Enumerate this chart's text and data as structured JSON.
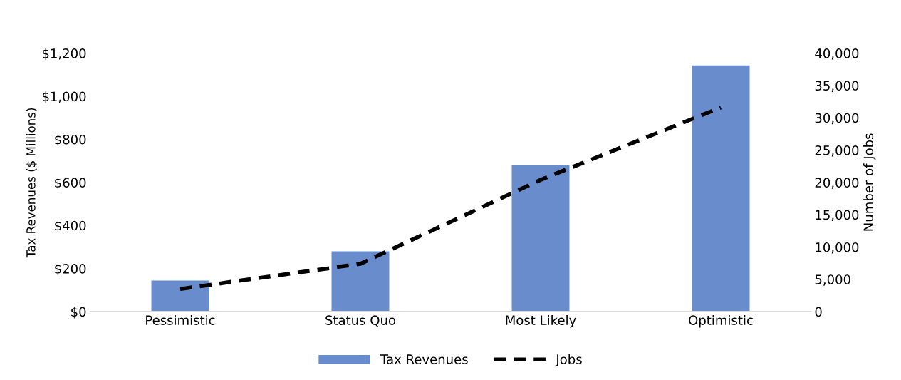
{
  "chart_data": {
    "type": "bar",
    "categories": [
      "Pessimistic",
      "Status Quo",
      "Most Likely",
      "Optimistic"
    ],
    "ylabel": "Tax Revenues ($ Millions)",
    "y2label": "Number of Jobs",
    "series": [
      {
        "name": "Tax Revenues",
        "color": "#698ccc",
        "values": [
          144,
          280,
          679,
          1143
        ]
      },
      {
        "name": "Jobs",
        "type": "line",
        "axis": "y2",
        "color": "#000000",
        "line_style": "dashed",
        "values": [
          3500,
          7400,
          20400,
          31600
        ]
      }
    ],
    "ylim": [
      0,
      1200
    ],
    "yticks": [
      {
        "value": 0,
        "label": "$0"
      },
      {
        "value": 200,
        "label": "$200"
      },
      {
        "value": 400,
        "label": "$400"
      },
      {
        "value": 600,
        "label": "$600"
      },
      {
        "value": 800,
        "label": "$800"
      },
      {
        "value": 1000,
        "label": "$1,000"
      },
      {
        "value": 1200,
        "label": "$1,200"
      }
    ],
    "y2lim": [
      0,
      40000
    ],
    "y2ticks": [
      0,
      {
        "value": 5000,
        "label": "5,000"
      },
      {
        "value": 10000,
        "label": "10,000"
      },
      {
        "value": 15000,
        "label": "15,000"
      },
      {
        "value": 20000,
        "label": "20,000"
      },
      {
        "value": 25000,
        "label": "25,000"
      },
      {
        "value": 30000,
        "label": "30,000"
      },
      {
        "value": 35000,
        "label": "35,000"
      },
      {
        "value": 40000,
        "label": "40,000"
      }
    ],
    "grid": false,
    "legend": "bottom"
  }
}
